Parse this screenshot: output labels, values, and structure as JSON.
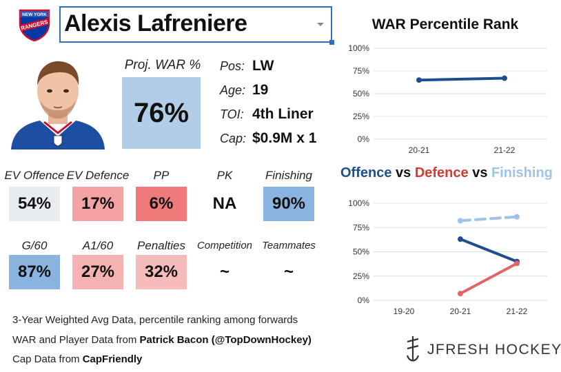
{
  "team": {
    "logo_text_top": "NEW YORK",
    "logo_text_main": "RANGERS"
  },
  "player": {
    "name": "Alexis Lafreniere",
    "pos_label": "Pos:",
    "pos": "LW",
    "age_label": "Age:",
    "age": "19",
    "toi_label": "TOI:",
    "toi": "4th Liner",
    "cap_label": "Cap:",
    "cap": "$0.9M x 1"
  },
  "proj_war": {
    "label": "Proj. WAR %",
    "value": "76%"
  },
  "stats_row1": [
    {
      "label": "EV Offence",
      "value": "54%",
      "color": "#e8ebef"
    },
    {
      "label": "EV Defence",
      "value": "17%",
      "color": "#f3a3a3"
    },
    {
      "label": "PP",
      "value": "6%",
      "color": "#f07a7a"
    },
    {
      "label": "PK",
      "value": "NA",
      "color": "#ffffff"
    },
    {
      "label": "Finishing",
      "value": "90%",
      "color": "#8ab4df"
    }
  ],
  "stats_row2": [
    {
      "label": "G/60",
      "value": "87%",
      "color": "#8ab4df"
    },
    {
      "label": "A1/60",
      "value": "27%",
      "color": "#f5b2b2"
    },
    {
      "label": "Penalties",
      "value": "32%",
      "color": "#f6bcbc"
    },
    {
      "label": "Competition",
      "value": "~",
      "color": "#ffffff"
    },
    {
      "label": "Teammates",
      "value": "~",
      "color": "#ffffff"
    }
  ],
  "footer": {
    "line1": "3-Year Weighted Avg Data, percentile ranking among forwards",
    "line2_prefix": "WAR and Player Data from ",
    "line2_source": "Patrick Bacon (@TopDownHockey)",
    "line3_prefix": "Cap Data from ",
    "line3_source": "CapFriendly"
  },
  "brand": {
    "name": "JFRESH HOCKEY"
  },
  "charts_title": {
    "war": "WAR Percentile Rank",
    "offence": "Offence",
    "vs1": " vs ",
    "defence": "Defence",
    "vs2": " vs ",
    "finishing": "Finishing"
  },
  "colors": {
    "offence": "#1f4e8c",
    "defence": "#d63a2f",
    "finishing": "#9ec3e6",
    "defence_line": "#e06666",
    "war_line": "#1f4e8c",
    "grid": "#dddddd"
  },
  "chart_data": [
    {
      "type": "line",
      "title": "WAR Percentile Rank",
      "categories": [
        "20-21",
        "21-22"
      ],
      "ylim": [
        0,
        100
      ],
      "yticks": [
        "0%",
        "25%",
        "50%",
        "75%",
        "100%"
      ],
      "grid": true,
      "series": [
        {
          "values": [
            65,
            67
          ],
          "color": "#1f4e8c",
          "dashed": false
        }
      ]
    },
    {
      "type": "line",
      "title": "Offence vs Defence vs Finishing",
      "categories": [
        "19-20",
        "20-21",
        "21-22"
      ],
      "ylim": [
        0,
        100
      ],
      "yticks": [
        "0%",
        "25%",
        "50%",
        "75%",
        "100%"
      ],
      "grid": true,
      "series": [
        {
          "values": [
            null,
            63,
            40
          ],
          "color": "#1f4e8c",
          "dashed": false
        },
        {
          "values": [
            null,
            7,
            38
          ],
          "color": "#e06666",
          "dashed": false
        },
        {
          "values": [
            null,
            82,
            86
          ],
          "color": "#9ec3e6",
          "dashed": true
        }
      ]
    }
  ]
}
